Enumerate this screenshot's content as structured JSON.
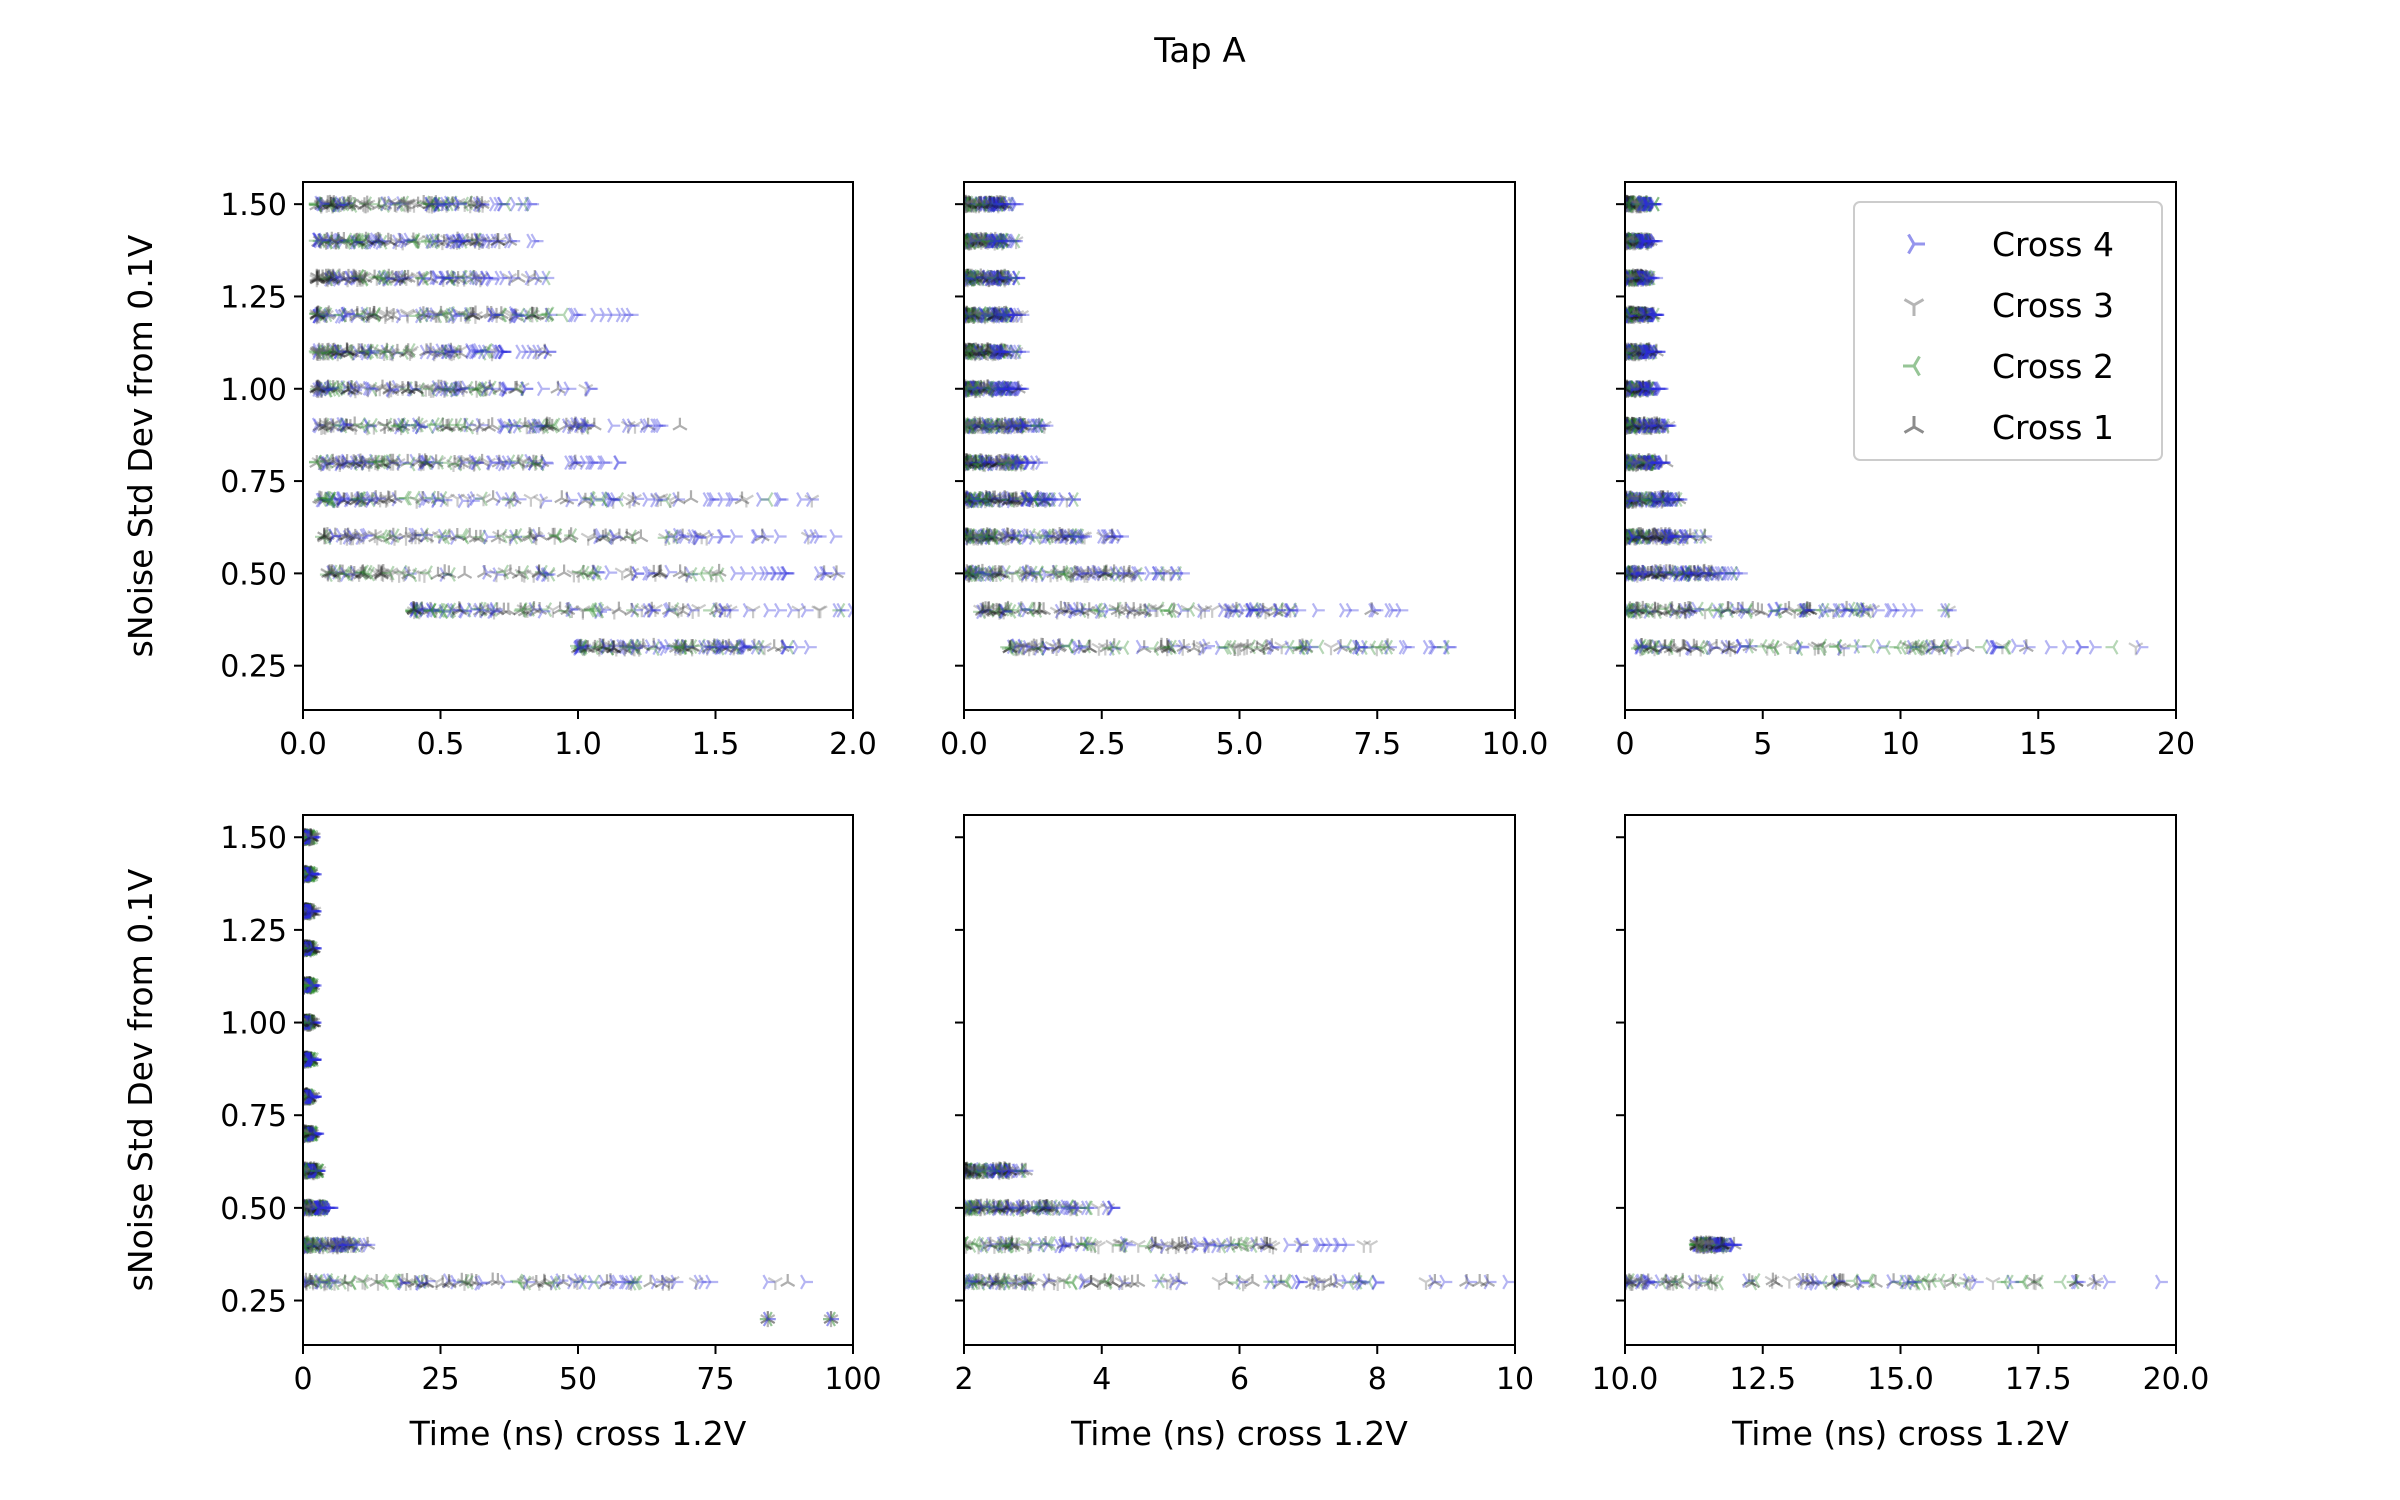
{
  "figure": {
    "title": "Tap A"
  },
  "colors": {
    "Cross 4": "#2b2bdc",
    "Cross 3": "#6b6b6b",
    "Cross 2": "#2e8b2e",
    "Cross 1": "#1a1a1a"
  },
  "legend": {
    "placement": "upper-right of top-right subplot",
    "entries": [
      {
        "name": "Cross 4",
        "marker": "tri-right"
      },
      {
        "name": "Cross 3",
        "marker": "tri-down"
      },
      {
        "name": "Cross 2",
        "marker": "tri-left"
      },
      {
        "name": "Cross 1",
        "marker": "tri-up"
      }
    ]
  },
  "chart_data": [
    {
      "type": "scatter",
      "xlim": [
        0,
        2
      ],
      "ylim": [
        0.13,
        1.56
      ],
      "xticks": [
        "0.0",
        "0.5",
        "1.0",
        "1.5",
        "2.0"
      ],
      "xtick_values": [
        0,
        0.5,
        1,
        1.5,
        2
      ],
      "yticks": [
        "0.25",
        "0.50",
        "0.75",
        "1.00",
        "1.25",
        "1.50"
      ],
      "ytick_values": [
        0.25,
        0.5,
        0.75,
        1.0,
        1.25,
        1.5
      ],
      "ylabel": "sNoise Std Dev from 0.1V",
      "xlabel": "",
      "rows": [
        {
          "y": 1.5,
          "x_range": [
            0.05,
            0.86
          ]
        },
        {
          "y": 1.4,
          "x_range": [
            0.05,
            0.88
          ]
        },
        {
          "y": 1.3,
          "x_range": [
            0.05,
            0.9
          ]
        },
        {
          "y": 1.2,
          "x_range": [
            0.05,
            1.2
          ]
        },
        {
          "y": 1.1,
          "x_range": [
            0.05,
            0.95
          ]
        },
        {
          "y": 1.0,
          "x_range": [
            0.05,
            1.05
          ]
        },
        {
          "y": 0.9,
          "x_range": [
            0.05,
            1.4
          ]
        },
        {
          "y": 0.8,
          "x_range": [
            0.05,
            1.18
          ]
        },
        {
          "y": 0.7,
          "x_range": [
            0.06,
            1.87
          ]
        },
        {
          "y": 0.6,
          "x_range": [
            0.07,
            1.98
          ]
        },
        {
          "y": 0.5,
          "x_range": [
            0.09,
            2.0
          ]
        },
        {
          "y": 0.4,
          "x_range": [
            0.4,
            2.0
          ]
        },
        {
          "y": 0.3,
          "x_range": [
            1.0,
            1.86
          ]
        }
      ]
    },
    {
      "type": "scatter",
      "xlim": [
        0,
        10
      ],
      "ylim": [
        0.13,
        1.56
      ],
      "xticks": [
        "0.0",
        "2.5",
        "5.0",
        "7.5",
        "10.0"
      ],
      "xtick_values": [
        0,
        2.5,
        5,
        7.5,
        10
      ],
      "ytick_values": [
        0.25,
        0.5,
        0.75,
        1.0,
        1.25,
        1.5
      ],
      "xlabel": "",
      "rows": [
        {
          "y": 1.5,
          "x_range": [
            0.0,
            0.95
          ]
        },
        {
          "y": 1.4,
          "x_range": [
            0.0,
            0.98
          ]
        },
        {
          "y": 1.3,
          "x_range": [
            0.0,
            1.0
          ]
        },
        {
          "y": 1.2,
          "x_range": [
            0.0,
            1.05
          ]
        },
        {
          "y": 1.1,
          "x_range": [
            0.0,
            1.05
          ]
        },
        {
          "y": 1.0,
          "x_range": [
            0.0,
            1.1
          ]
        },
        {
          "y": 0.9,
          "x_range": [
            0.0,
            1.5
          ]
        },
        {
          "y": 0.8,
          "x_range": [
            0.0,
            1.4
          ]
        },
        {
          "y": 0.7,
          "x_range": [
            0.0,
            2.0
          ]
        },
        {
          "y": 0.6,
          "x_range": [
            0.0,
            2.9
          ]
        },
        {
          "y": 0.5,
          "x_range": [
            0.05,
            4.2
          ]
        },
        {
          "y": 0.4,
          "x_range": [
            0.3,
            8.0
          ]
        },
        {
          "y": 0.3,
          "x_range": [
            0.8,
            10.0
          ]
        }
      ]
    },
    {
      "type": "scatter",
      "xlim": [
        0,
        20
      ],
      "ylim": [
        0.13,
        1.56
      ],
      "xticks": [
        "0",
        "5",
        "10",
        "15",
        "20"
      ],
      "xtick_values": [
        0,
        5,
        10,
        15,
        20
      ],
      "ytick_values": [
        0.25,
        0.5,
        0.75,
        1.0,
        1.25,
        1.5
      ],
      "xlabel": "",
      "rows": [
        {
          "y": 1.5,
          "x_range": [
            0.0,
            1.1
          ]
        },
        {
          "y": 1.4,
          "x_range": [
            0.0,
            1.1
          ]
        },
        {
          "y": 1.3,
          "x_range": [
            0.0,
            1.1
          ]
        },
        {
          "y": 1.2,
          "x_range": [
            0.0,
            1.2
          ]
        },
        {
          "y": 1.1,
          "x_range": [
            0.0,
            1.2
          ]
        },
        {
          "y": 1.0,
          "x_range": [
            0.0,
            1.3
          ]
        },
        {
          "y": 0.9,
          "x_range": [
            0.0,
            1.6
          ]
        },
        {
          "y": 0.8,
          "x_range": [
            0.0,
            1.5
          ]
        },
        {
          "y": 0.7,
          "x_range": [
            0.0,
            2.1
          ]
        },
        {
          "y": 0.6,
          "x_range": [
            0.0,
            2.9
          ]
        },
        {
          "y": 0.5,
          "x_range": [
            0.0,
            4.2
          ]
        },
        {
          "y": 0.4,
          "x_range": [
            0.0,
            12.0
          ]
        },
        {
          "y": 0.3,
          "x_range": [
            0.5,
            20.0
          ]
        }
      ]
    },
    {
      "type": "scatter",
      "xlim": [
        0,
        100
      ],
      "ylim": [
        0.13,
        1.56
      ],
      "xticks": [
        "0",
        "25",
        "50",
        "75",
        "100"
      ],
      "xtick_values": [
        0,
        25,
        50,
        75,
        100
      ],
      "yticks": [
        "0.25",
        "0.50",
        "0.75",
        "1.00",
        "1.25",
        "1.50"
      ],
      "ytick_values": [
        0.25,
        0.5,
        0.75,
        1.0,
        1.25,
        1.5
      ],
      "ylabel": "sNoise Std Dev from 0.1V",
      "xlabel": "Time (ns) cross 1.2V",
      "rows": [
        {
          "y": 1.5,
          "x_range": [
            0.0,
            2.0
          ]
        },
        {
          "y": 1.4,
          "x_range": [
            0.0,
            2.0
          ]
        },
        {
          "y": 1.3,
          "x_range": [
            0.0,
            2.0
          ]
        },
        {
          "y": 1.2,
          "x_range": [
            0.0,
            2.0
          ]
        },
        {
          "y": 1.1,
          "x_range": [
            0.0,
            2.0
          ]
        },
        {
          "y": 1.0,
          "x_range": [
            0.0,
            2.0
          ]
        },
        {
          "y": 0.9,
          "x_range": [
            0.0,
            2.0
          ]
        },
        {
          "y": 0.8,
          "x_range": [
            0.0,
            2.0
          ]
        },
        {
          "y": 0.7,
          "x_range": [
            0.0,
            2.5
          ]
        },
        {
          "y": 0.6,
          "x_range": [
            0.0,
            3.0
          ]
        },
        {
          "y": 0.5,
          "x_range": [
            0.0,
            5.0
          ]
        },
        {
          "y": 0.4,
          "x_range": [
            0.0,
            12.0
          ]
        },
        {
          "y": 0.3,
          "x_range": [
            0.5,
            92.0
          ]
        },
        {
          "y": 0.2,
          "points": [
            84.5,
            96.0
          ]
        }
      ]
    },
    {
      "type": "scatter",
      "xlim": [
        2,
        10
      ],
      "ylim": [
        0.13,
        1.56
      ],
      "xticks": [
        "2",
        "4",
        "6",
        "8",
        "10"
      ],
      "xtick_values": [
        2,
        4,
        6,
        8,
        10
      ],
      "ytick_values": [
        0.25,
        0.5,
        0.75,
        1.0,
        1.25,
        1.5
      ],
      "xlabel": "Time (ns) cross 1.2V",
      "rows": [
        {
          "y": 0.6,
          "x_range": [
            2.0,
            2.9
          ]
        },
        {
          "y": 0.5,
          "x_range": [
            2.0,
            4.2
          ]
        },
        {
          "y": 0.4,
          "x_range": [
            2.0,
            8.0
          ]
        },
        {
          "y": 0.3,
          "x_range": [
            2.0,
            10.0
          ]
        }
      ]
    },
    {
      "type": "scatter",
      "xlim": [
        10,
        20
      ],
      "ylim": [
        0.13,
        1.56
      ],
      "xticks": [
        "10.0",
        "12.5",
        "15.0",
        "17.5",
        "20.0"
      ],
      "xtick_values": [
        10,
        12.5,
        15,
        17.5,
        20
      ],
      "ytick_values": [
        0.25,
        0.5,
        0.75,
        1.0,
        1.25,
        1.5
      ],
      "xlabel": "Time (ns) cross 1.2V",
      "rows": [
        {
          "y": 0.4,
          "x_range": [
            11.3,
            12.0
          ]
        },
        {
          "y": 0.3,
          "x_range": [
            10.0,
            20.0
          ]
        }
      ]
    }
  ]
}
